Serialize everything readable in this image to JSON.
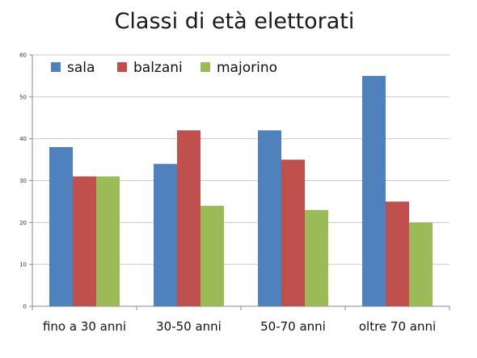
{
  "chart_data": {
    "type": "bar",
    "title": "Classi di età elettorati",
    "xlabel": "",
    "ylabel": "",
    "categories": [
      "fino a 30 anni",
      "30-50 anni",
      "50-70 anni",
      "oltre 70 anni"
    ],
    "series": [
      {
        "name": "sala",
        "color": "#4F81BD",
        "values": [
          38,
          34,
          42,
          55
        ]
      },
      {
        "name": "balzani",
        "color": "#C0504D",
        "values": [
          31,
          42,
          35,
          25
        ]
      },
      {
        "name": "majorino",
        "color": "#9BBB59",
        "values": [
          31,
          24,
          23,
          20
        ]
      }
    ],
    "ylim": [
      0,
      60
    ],
    "yticks": [
      0,
      10,
      20,
      30,
      40,
      50,
      60
    ],
    "grid": true,
    "legend_position": "top-left"
  }
}
